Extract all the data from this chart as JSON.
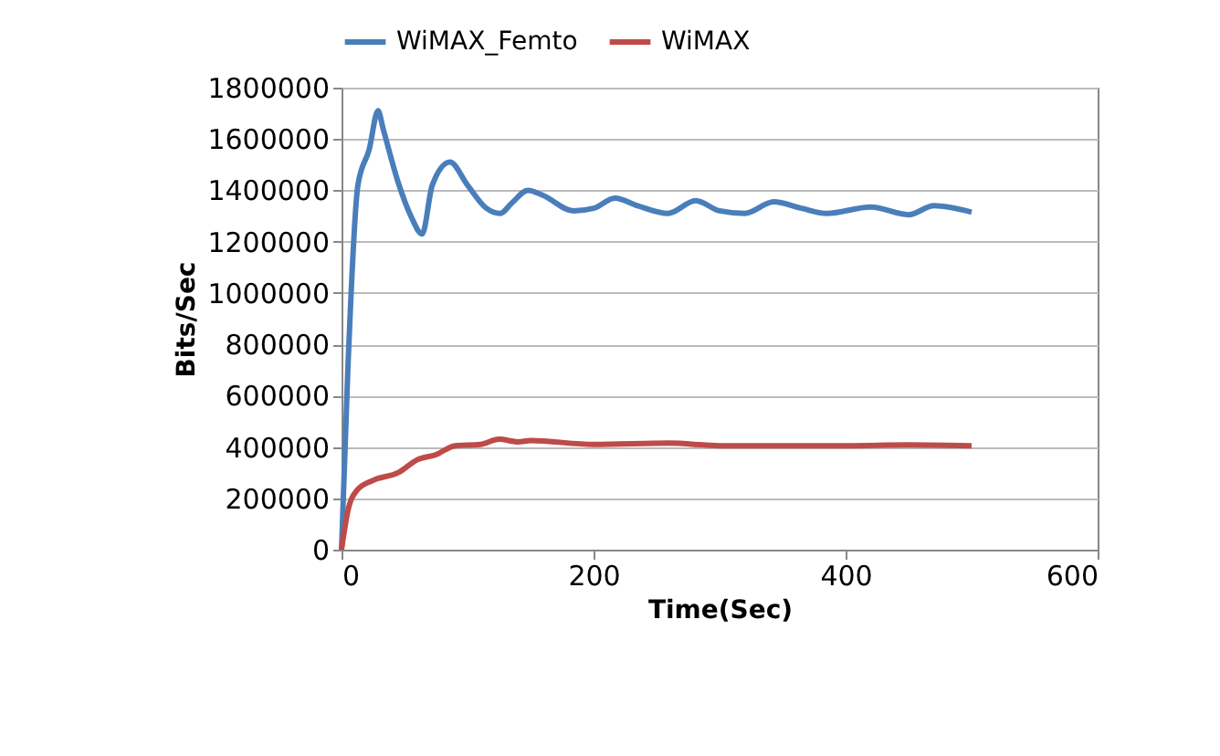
{
  "chart_data": {
    "type": "line",
    "xlabel": "Time(Sec)",
    "ylabel": "Bits/Sec",
    "xlim": [
      0,
      600
    ],
    "xticks": [
      0,
      200,
      400,
      600
    ],
    "ylim": [
      0,
      1800000
    ],
    "yticks": [
      0,
      200000,
      400000,
      600000,
      800000,
      1000000,
      1200000,
      1400000,
      1600000,
      1800000
    ],
    "grid": "y",
    "legend": "top",
    "marker": "none",
    "line_style": "solid",
    "series": [
      {
        "name": "WiMAX_Femto",
        "color": "#4a7ebb",
        "x": [
          0,
          5,
          13,
          22,
          29,
          33,
          45,
          55,
          64,
          72,
          86,
          100,
          115,
          126,
          135,
          148,
          160,
          184,
          200,
          217,
          235,
          259,
          281,
          300,
          320,
          343,
          365,
          385,
          420,
          450,
          470,
          500
        ],
        "values": [
          0,
          700000,
          1420000,
          1560000,
          1710000,
          1640000,
          1430000,
          1300000,
          1230000,
          1420000,
          1510000,
          1420000,
          1330000,
          1310000,
          1350000,
          1400000,
          1380000,
          1320000,
          1330000,
          1370000,
          1340000,
          1310000,
          1360000,
          1320000,
          1310000,
          1355000,
          1330000,
          1310000,
          1335000,
          1305000,
          1340000,
          1315000
        ]
      },
      {
        "name": "WiMAX",
        "color": "#be4b48",
        "x": [
          0,
          5,
          12,
          25,
          45,
          60,
          75,
          90,
          110,
          125,
          140,
          150,
          200,
          260,
          300,
          400,
          450,
          500
        ],
        "values": [
          0,
          150000,
          230000,
          270000,
          300000,
          350000,
          370000,
          405000,
          410000,
          430000,
          420000,
          425000,
          410000,
          415000,
          405000,
          405000,
          408000,
          405000
        ]
      }
    ]
  }
}
